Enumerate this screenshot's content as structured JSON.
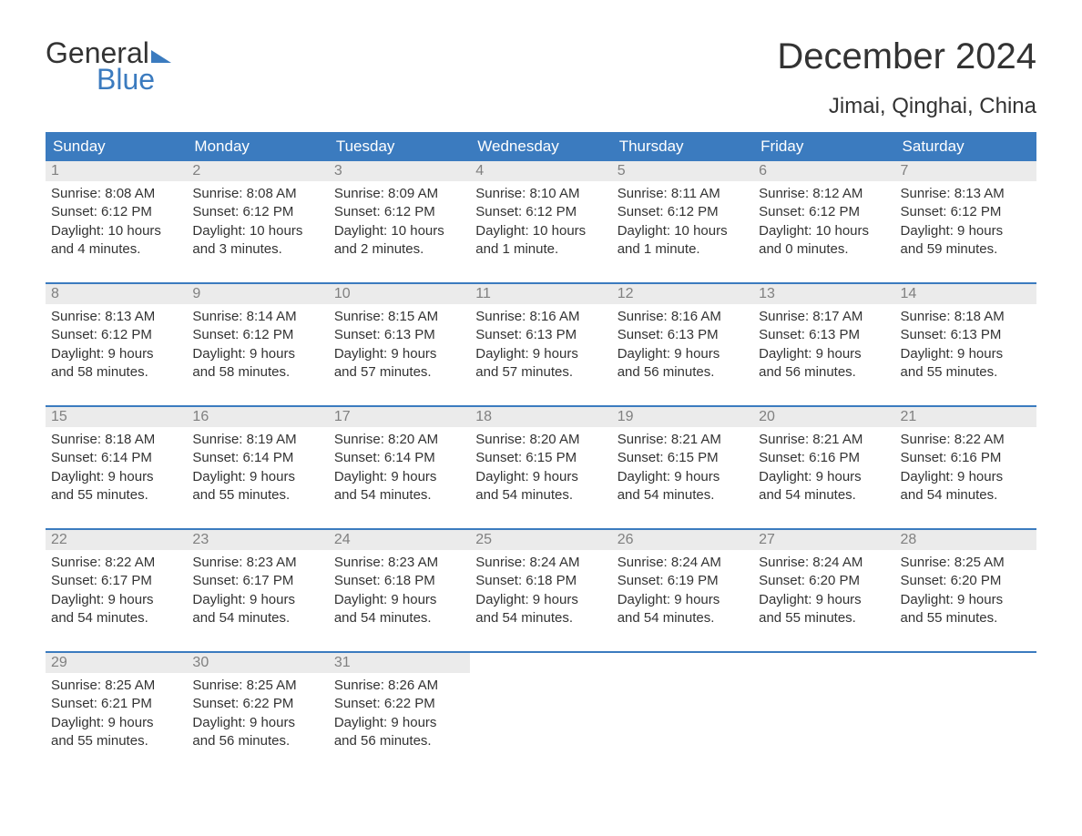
{
  "brand": {
    "text_general": "General",
    "text_blue": "Blue",
    "icon_color": "#3b7bbf"
  },
  "header": {
    "month_title": "December 2024",
    "location": "Jimai, Qinghai, China"
  },
  "colors": {
    "header_bg": "#3b7bbf",
    "header_text": "#ffffff",
    "day_num_bg": "#ebebeb",
    "day_num_text": "#808080",
    "body_text": "#333333",
    "week_border": "#3b7bbf",
    "background": "#ffffff"
  },
  "typography": {
    "month_title_fontsize": 40,
    "location_fontsize": 24,
    "day_header_fontsize": 17,
    "day_number_fontsize": 16,
    "content_fontsize": 15
  },
  "day_headers": [
    "Sunday",
    "Monday",
    "Tuesday",
    "Wednesday",
    "Thursday",
    "Friday",
    "Saturday"
  ],
  "weeks": [
    [
      {
        "day": "1",
        "sunrise": "Sunrise: 8:08 AM",
        "sunset": "Sunset: 6:12 PM",
        "daylight1": "Daylight: 10 hours",
        "daylight2": "and 4 minutes."
      },
      {
        "day": "2",
        "sunrise": "Sunrise: 8:08 AM",
        "sunset": "Sunset: 6:12 PM",
        "daylight1": "Daylight: 10 hours",
        "daylight2": "and 3 minutes."
      },
      {
        "day": "3",
        "sunrise": "Sunrise: 8:09 AM",
        "sunset": "Sunset: 6:12 PM",
        "daylight1": "Daylight: 10 hours",
        "daylight2": "and 2 minutes."
      },
      {
        "day": "4",
        "sunrise": "Sunrise: 8:10 AM",
        "sunset": "Sunset: 6:12 PM",
        "daylight1": "Daylight: 10 hours",
        "daylight2": "and 1 minute."
      },
      {
        "day": "5",
        "sunrise": "Sunrise: 8:11 AM",
        "sunset": "Sunset: 6:12 PM",
        "daylight1": "Daylight: 10 hours",
        "daylight2": "and 1 minute."
      },
      {
        "day": "6",
        "sunrise": "Sunrise: 8:12 AM",
        "sunset": "Sunset: 6:12 PM",
        "daylight1": "Daylight: 10 hours",
        "daylight2": "and 0 minutes."
      },
      {
        "day": "7",
        "sunrise": "Sunrise: 8:13 AM",
        "sunset": "Sunset: 6:12 PM",
        "daylight1": "Daylight: 9 hours",
        "daylight2": "and 59 minutes."
      }
    ],
    [
      {
        "day": "8",
        "sunrise": "Sunrise: 8:13 AM",
        "sunset": "Sunset: 6:12 PM",
        "daylight1": "Daylight: 9 hours",
        "daylight2": "and 58 minutes."
      },
      {
        "day": "9",
        "sunrise": "Sunrise: 8:14 AM",
        "sunset": "Sunset: 6:12 PM",
        "daylight1": "Daylight: 9 hours",
        "daylight2": "and 58 minutes."
      },
      {
        "day": "10",
        "sunrise": "Sunrise: 8:15 AM",
        "sunset": "Sunset: 6:13 PM",
        "daylight1": "Daylight: 9 hours",
        "daylight2": "and 57 minutes."
      },
      {
        "day": "11",
        "sunrise": "Sunrise: 8:16 AM",
        "sunset": "Sunset: 6:13 PM",
        "daylight1": "Daylight: 9 hours",
        "daylight2": "and 57 minutes."
      },
      {
        "day": "12",
        "sunrise": "Sunrise: 8:16 AM",
        "sunset": "Sunset: 6:13 PM",
        "daylight1": "Daylight: 9 hours",
        "daylight2": "and 56 minutes."
      },
      {
        "day": "13",
        "sunrise": "Sunrise: 8:17 AM",
        "sunset": "Sunset: 6:13 PM",
        "daylight1": "Daylight: 9 hours",
        "daylight2": "and 56 minutes."
      },
      {
        "day": "14",
        "sunrise": "Sunrise: 8:18 AM",
        "sunset": "Sunset: 6:13 PM",
        "daylight1": "Daylight: 9 hours",
        "daylight2": "and 55 minutes."
      }
    ],
    [
      {
        "day": "15",
        "sunrise": "Sunrise: 8:18 AM",
        "sunset": "Sunset: 6:14 PM",
        "daylight1": "Daylight: 9 hours",
        "daylight2": "and 55 minutes."
      },
      {
        "day": "16",
        "sunrise": "Sunrise: 8:19 AM",
        "sunset": "Sunset: 6:14 PM",
        "daylight1": "Daylight: 9 hours",
        "daylight2": "and 55 minutes."
      },
      {
        "day": "17",
        "sunrise": "Sunrise: 8:20 AM",
        "sunset": "Sunset: 6:14 PM",
        "daylight1": "Daylight: 9 hours",
        "daylight2": "and 54 minutes."
      },
      {
        "day": "18",
        "sunrise": "Sunrise: 8:20 AM",
        "sunset": "Sunset: 6:15 PM",
        "daylight1": "Daylight: 9 hours",
        "daylight2": "and 54 minutes."
      },
      {
        "day": "19",
        "sunrise": "Sunrise: 8:21 AM",
        "sunset": "Sunset: 6:15 PM",
        "daylight1": "Daylight: 9 hours",
        "daylight2": "and 54 minutes."
      },
      {
        "day": "20",
        "sunrise": "Sunrise: 8:21 AM",
        "sunset": "Sunset: 6:16 PM",
        "daylight1": "Daylight: 9 hours",
        "daylight2": "and 54 minutes."
      },
      {
        "day": "21",
        "sunrise": "Sunrise: 8:22 AM",
        "sunset": "Sunset: 6:16 PM",
        "daylight1": "Daylight: 9 hours",
        "daylight2": "and 54 minutes."
      }
    ],
    [
      {
        "day": "22",
        "sunrise": "Sunrise: 8:22 AM",
        "sunset": "Sunset: 6:17 PM",
        "daylight1": "Daylight: 9 hours",
        "daylight2": "and 54 minutes."
      },
      {
        "day": "23",
        "sunrise": "Sunrise: 8:23 AM",
        "sunset": "Sunset: 6:17 PM",
        "daylight1": "Daylight: 9 hours",
        "daylight2": "and 54 minutes."
      },
      {
        "day": "24",
        "sunrise": "Sunrise: 8:23 AM",
        "sunset": "Sunset: 6:18 PM",
        "daylight1": "Daylight: 9 hours",
        "daylight2": "and 54 minutes."
      },
      {
        "day": "25",
        "sunrise": "Sunrise: 8:24 AM",
        "sunset": "Sunset: 6:18 PM",
        "daylight1": "Daylight: 9 hours",
        "daylight2": "and 54 minutes."
      },
      {
        "day": "26",
        "sunrise": "Sunrise: 8:24 AM",
        "sunset": "Sunset: 6:19 PM",
        "daylight1": "Daylight: 9 hours",
        "daylight2": "and 54 minutes."
      },
      {
        "day": "27",
        "sunrise": "Sunrise: 8:24 AM",
        "sunset": "Sunset: 6:20 PM",
        "daylight1": "Daylight: 9 hours",
        "daylight2": "and 55 minutes."
      },
      {
        "day": "28",
        "sunrise": "Sunrise: 8:25 AM",
        "sunset": "Sunset: 6:20 PM",
        "daylight1": "Daylight: 9 hours",
        "daylight2": "and 55 minutes."
      }
    ],
    [
      {
        "day": "29",
        "sunrise": "Sunrise: 8:25 AM",
        "sunset": "Sunset: 6:21 PM",
        "daylight1": "Daylight: 9 hours",
        "daylight2": "and 55 minutes."
      },
      {
        "day": "30",
        "sunrise": "Sunrise: 8:25 AM",
        "sunset": "Sunset: 6:22 PM",
        "daylight1": "Daylight: 9 hours",
        "daylight2": "and 56 minutes."
      },
      {
        "day": "31",
        "sunrise": "Sunrise: 8:26 AM",
        "sunset": "Sunset: 6:22 PM",
        "daylight1": "Daylight: 9 hours",
        "daylight2": "and 56 minutes."
      },
      {
        "empty": true
      },
      {
        "empty": true
      },
      {
        "empty": true
      },
      {
        "empty": true
      }
    ]
  ]
}
